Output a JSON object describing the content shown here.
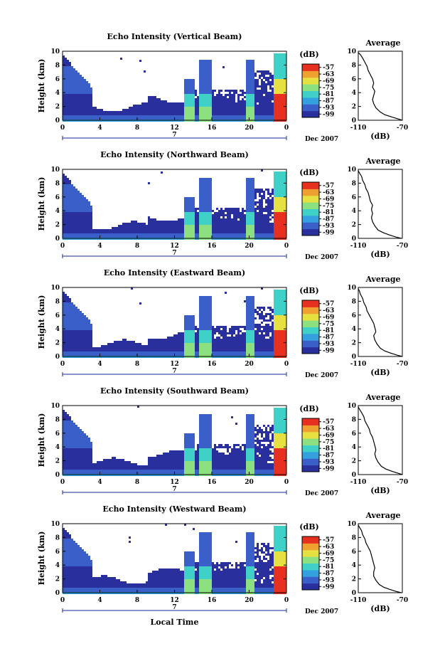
{
  "figure": {
    "xlabel": "Local Time",
    "date_label": "Dec 2007",
    "colorbar_unit": "(dB)",
    "avg_title": "Average",
    "avg_xlabel": "(dB)"
  },
  "chart_data": [
    {
      "type": "heatmap",
      "title": "Echo Intensity (Vertical Beam)",
      "ylabel": "Height (km)",
      "xlabel": "Local Time",
      "x_ticks": [
        "0",
        "4",
        "8",
        "12",
        "16",
        "20",
        "0"
      ],
      "day_label": "7",
      "date_label": "Dec 2007",
      "xlim": [
        0,
        24
      ],
      "ylim": [
        0,
        10
      ],
      "y_ticks": [
        "0",
        "2",
        "4",
        "6",
        "8",
        "10"
      ],
      "colorbar": {
        "unit": "(dB)",
        "ticks": [
          "-57",
          "-63",
          "-69",
          "-75",
          "-81",
          "-87",
          "-93",
          "-99"
        ],
        "range": [
          -99,
          -57
        ]
      },
      "colors": [
        "#2a2f9e",
        "#3a5fc8",
        "#35a0e0",
        "#3fd0c8",
        "#8de080",
        "#e6e040",
        "#f0a030",
        "#e83020"
      ],
      "average": {
        "title": "Average",
        "xlabel": "(dB)",
        "xlim": [
          -110,
          -70
        ],
        "x_ticks": [
          "-110",
          "-70"
        ],
        "profile": [
          [
            -70,
            0
          ],
          [
            -74,
            0.2
          ],
          [
            -80,
            0.5
          ],
          [
            -86,
            0.8
          ],
          [
            -90,
            1.2
          ],
          [
            -94,
            1.8
          ],
          [
            -96,
            2.4
          ],
          [
            -97,
            3
          ],
          [
            -96,
            3.6
          ],
          [
            -95,
            4.2
          ],
          [
            -97,
            4.8
          ],
          [
            -96,
            5.4
          ],
          [
            -97,
            6
          ],
          [
            -99,
            6.6
          ],
          [
            -101,
            7.2
          ],
          [
            -102,
            7.8
          ],
          [
            -104,
            8.4
          ],
          [
            -106,
            9
          ],
          [
            -108,
            9.5
          ],
          [
            -110,
            9.8
          ]
        ]
      }
    },
    {
      "type": "heatmap",
      "title": "Echo Intensity (Northward Beam)",
      "ylabel": "Height (km)",
      "xlabel": "Local Time",
      "x_ticks": [
        "0",
        "4",
        "8",
        "12",
        "16",
        "20",
        "0"
      ],
      "day_label": "7",
      "date_label": "Dec 2007",
      "xlim": [
        0,
        24
      ],
      "ylim": [
        0,
        10
      ],
      "y_ticks": [
        "0",
        "2",
        "4",
        "6",
        "8",
        "10"
      ],
      "colorbar": {
        "unit": "(dB)",
        "ticks": [
          "-57",
          "-63",
          "-69",
          "-75",
          "-81",
          "-87",
          "-93",
          "-99"
        ],
        "range": [
          -99,
          -57
        ]
      },
      "colors": [
        "#2a2f9e",
        "#3a5fc8",
        "#35a0e0",
        "#3fd0c8",
        "#8de080",
        "#e6e040",
        "#f0a030",
        "#e83020"
      ],
      "average": {
        "title": "Average",
        "xlabel": "(dB)",
        "xlim": [
          -110,
          -70
        ],
        "x_ticks": [
          "-110",
          "-70"
        ],
        "profile": [
          [
            -71,
            0
          ],
          [
            -76,
            0.2
          ],
          [
            -82,
            0.5
          ],
          [
            -87,
            0.8
          ],
          [
            -92,
            1.2
          ],
          [
            -95,
            1.8
          ],
          [
            -97,
            2.4
          ],
          [
            -98,
            3
          ],
          [
            -97,
            3.6
          ],
          [
            -98,
            4.2
          ],
          [
            -97,
            4.8
          ],
          [
            -99,
            5.4
          ],
          [
            -100,
            6
          ],
          [
            -101,
            6.6
          ],
          [
            -103,
            7.2
          ],
          [
            -104,
            7.8
          ],
          [
            -106,
            8.4
          ],
          [
            -107,
            9
          ],
          [
            -109,
            9.5
          ],
          [
            -110,
            9.8
          ]
        ]
      }
    },
    {
      "type": "heatmap",
      "title": "Echo Intensity (Eastward Beam)",
      "ylabel": "Height (km)",
      "xlabel": "Local Time",
      "x_ticks": [
        "0",
        "4",
        "8",
        "12",
        "16",
        "20",
        "0"
      ],
      "day_label": "7",
      "date_label": "Dec 2007",
      "xlim": [
        0,
        24
      ],
      "ylim": [
        0,
        10
      ],
      "y_ticks": [
        "0",
        "2",
        "4",
        "6",
        "8",
        "10"
      ],
      "colorbar": {
        "unit": "(dB)",
        "ticks": [
          "-57",
          "-63",
          "-69",
          "-75",
          "-81",
          "-87",
          "-93",
          "-99"
        ],
        "range": [
          -99,
          -57
        ]
      },
      "colors": [
        "#2a2f9e",
        "#3a5fc8",
        "#35a0e0",
        "#3fd0c8",
        "#8de080",
        "#e6e040",
        "#f0a030",
        "#e83020"
      ],
      "average": {
        "title": "Average",
        "xlabel": "(dB)",
        "xlim": [
          -110,
          -70
        ],
        "x_ticks": [
          "-110",
          "-70"
        ],
        "profile": [
          [
            -70,
            0
          ],
          [
            -75,
            0.2
          ],
          [
            -81,
            0.5
          ],
          [
            -86,
            0.8
          ],
          [
            -90,
            1.2
          ],
          [
            -93,
            1.8
          ],
          [
            -95,
            2.4
          ],
          [
            -96,
            3
          ],
          [
            -94,
            3.6
          ],
          [
            -95,
            4.2
          ],
          [
            -96,
            4.8
          ],
          [
            -98,
            5.4
          ],
          [
            -100,
            6
          ],
          [
            -102,
            6.6
          ],
          [
            -103,
            7.2
          ],
          [
            -105,
            7.8
          ],
          [
            -106,
            8.4
          ],
          [
            -108,
            9
          ],
          [
            -109,
            9.5
          ],
          [
            -110,
            9.8
          ]
        ]
      }
    },
    {
      "type": "heatmap",
      "title": "Echo Intensity (Southward Beam)",
      "ylabel": "Height (km)",
      "xlabel": "Local Time",
      "x_ticks": [
        "0",
        "4",
        "8",
        "12",
        "16",
        "20",
        "0"
      ],
      "day_label": "7",
      "date_label": "Dec 2007",
      "xlim": [
        0,
        24
      ],
      "ylim": [
        0,
        10
      ],
      "y_ticks": [
        "0",
        "2",
        "4",
        "6",
        "8",
        "10"
      ],
      "colorbar": {
        "unit": "(dB)",
        "ticks": [
          "-57",
          "-63",
          "-69",
          "-75",
          "-81",
          "-87",
          "-93",
          "-99"
        ],
        "range": [
          -99,
          -57
        ]
      },
      "colors": [
        "#2a2f9e",
        "#3a5fc8",
        "#35a0e0",
        "#3fd0c8",
        "#8de080",
        "#e6e040",
        "#f0a030",
        "#e83020"
      ],
      "average": {
        "title": "Average",
        "xlabel": "(dB)",
        "xlim": [
          -110,
          -70
        ],
        "x_ticks": [
          "-110",
          "-70"
        ],
        "profile": [
          [
            -70,
            0
          ],
          [
            -74,
            0.2
          ],
          [
            -80,
            0.5
          ],
          [
            -85,
            0.8
          ],
          [
            -89,
            1.2
          ],
          [
            -92,
            1.8
          ],
          [
            -94,
            2.4
          ],
          [
            -95,
            3
          ],
          [
            -94,
            3.6
          ],
          [
            -95,
            4.2
          ],
          [
            -96,
            4.8
          ],
          [
            -97,
            5.4
          ],
          [
            -99,
            6
          ],
          [
            -100,
            6.6
          ],
          [
            -102,
            7.2
          ],
          [
            -104,
            7.8
          ],
          [
            -105,
            8.4
          ],
          [
            -107,
            9
          ],
          [
            -109,
            9.5
          ],
          [
            -110,
            9.8
          ]
        ]
      }
    },
    {
      "type": "heatmap",
      "title": "Echo Intensity (Westward Beam)",
      "ylabel": "Height (km)",
      "xlabel": "Local Time",
      "x_ticks": [
        "0",
        "4",
        "8",
        "12",
        "16",
        "20",
        "0"
      ],
      "day_label": "7",
      "date_label": "Dec 2007",
      "xlim": [
        0,
        24
      ],
      "ylim": [
        0,
        10
      ],
      "y_ticks": [
        "0",
        "2",
        "4",
        "6",
        "8",
        "10"
      ],
      "colorbar": {
        "unit": "(dB)",
        "ticks": [
          "-57",
          "-63",
          "-69",
          "-75",
          "-81",
          "-87",
          "-93",
          "-99"
        ],
        "range": [
          -99,
          -57
        ]
      },
      "colors": [
        "#2a2f9e",
        "#3a5fc8",
        "#35a0e0",
        "#3fd0c8",
        "#8de080",
        "#e6e040",
        "#f0a030",
        "#e83020"
      ],
      "average": {
        "title": "Average",
        "xlabel": "(dB)",
        "xlim": [
          -110,
          -70
        ],
        "x_ticks": [
          "-110",
          "-70"
        ],
        "profile": [
          [
            -71,
            0
          ],
          [
            -76,
            0.2
          ],
          [
            -82,
            0.5
          ],
          [
            -87,
            0.8
          ],
          [
            -91,
            1.2
          ],
          [
            -94,
            1.8
          ],
          [
            -96,
            2.4
          ],
          [
            -96,
            3
          ],
          [
            -95,
            3.6
          ],
          [
            -96,
            4.2
          ],
          [
            -97,
            4.8
          ],
          [
            -98,
            5.4
          ],
          [
            -99,
            6
          ],
          [
            -101,
            6.6
          ],
          [
            -103,
            7.2
          ],
          [
            -104,
            7.8
          ],
          [
            -106,
            8.4
          ],
          [
            -107,
            9
          ],
          [
            -109,
            9.5
          ],
          [
            -110,
            9.8
          ]
        ]
      }
    }
  ]
}
